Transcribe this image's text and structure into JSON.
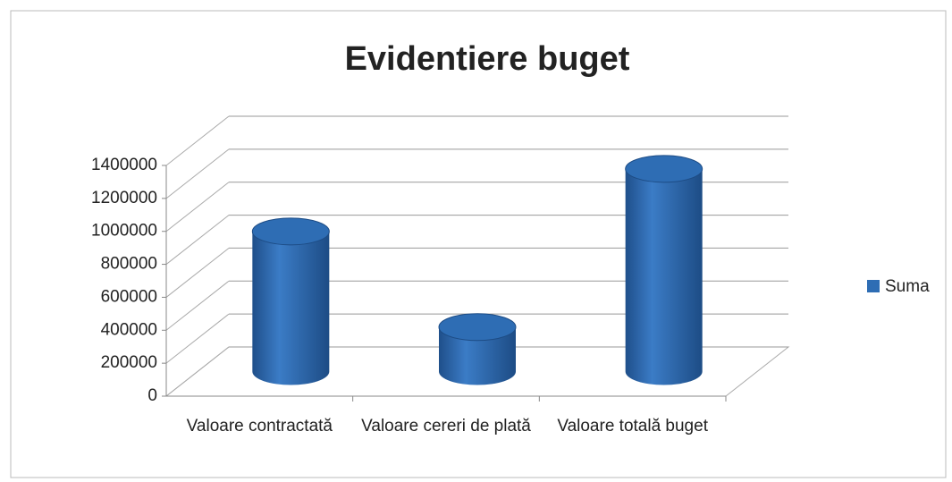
{
  "chart_data": {
    "type": "bar3d",
    "title": "Evidentiere buget",
    "categories": [
      "Valoare contractată",
      "Valoare cereri de plată",
      "Valoare totală buget"
    ],
    "series": [
      {
        "name": "Suma",
        "color": "#2e6db4",
        "values": [
          850000,
          270000,
          1230000
        ]
      }
    ],
    "ylim": [
      0,
      1400000
    ],
    "yticks": [
      0,
      200000,
      400000,
      600000,
      800000,
      1000000,
      1200000,
      1400000
    ],
    "grid": true,
    "legend": "right"
  }
}
